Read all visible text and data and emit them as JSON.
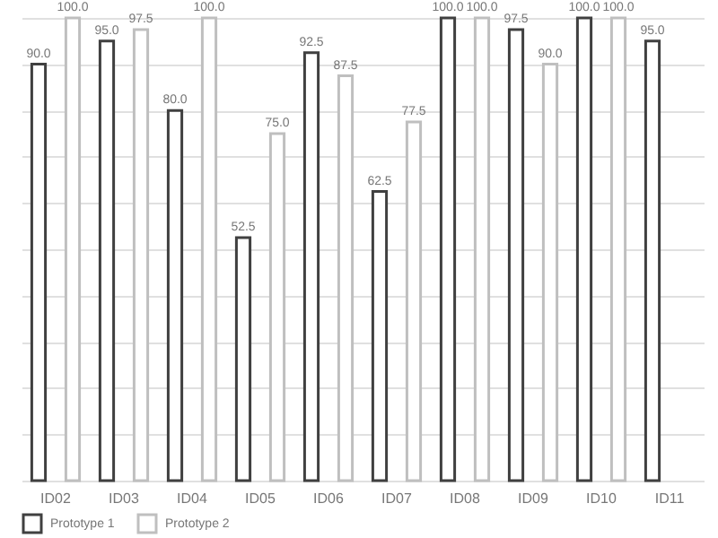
{
  "chart_data": {
    "type": "bar",
    "categories": [
      "ID02",
      "ID03",
      "ID04",
      "ID05",
      "ID06",
      "ID07",
      "ID08",
      "ID09",
      "ID10",
      "ID11"
    ],
    "series": [
      {
        "name": "Prototype 1",
        "color": "#404040",
        "values": [
          90,
          95,
          80,
          52.5,
          92.5,
          62.5,
          100,
          97.5,
          100,
          95
        ],
        "value_labels": [
          "90.0",
          "95.0",
          "80.0",
          "52.5",
          "92.5",
          "62.5",
          "100.0",
          "97.5",
          "100.0",
          "95.0"
        ]
      },
      {
        "name": "Prototype 2",
        "color": "#bfbfbf",
        "values": [
          100,
          97.5,
          100,
          75,
          87.5,
          77.5,
          100,
          90,
          100,
          null
        ],
        "value_labels": [
          "100.0",
          "97.5",
          "100.0",
          "75.0",
          "87.5",
          "77.5",
          "100.0",
          "90.0",
          "100.0",
          null
        ]
      }
    ],
    "ylim": [
      0,
      100
    ],
    "yticks": [
      0,
      10,
      20,
      30,
      40,
      50,
      60,
      70,
      80,
      90,
      100
    ],
    "grid": "y",
    "tick_labels": "x",
    "legend": "bottom"
  }
}
